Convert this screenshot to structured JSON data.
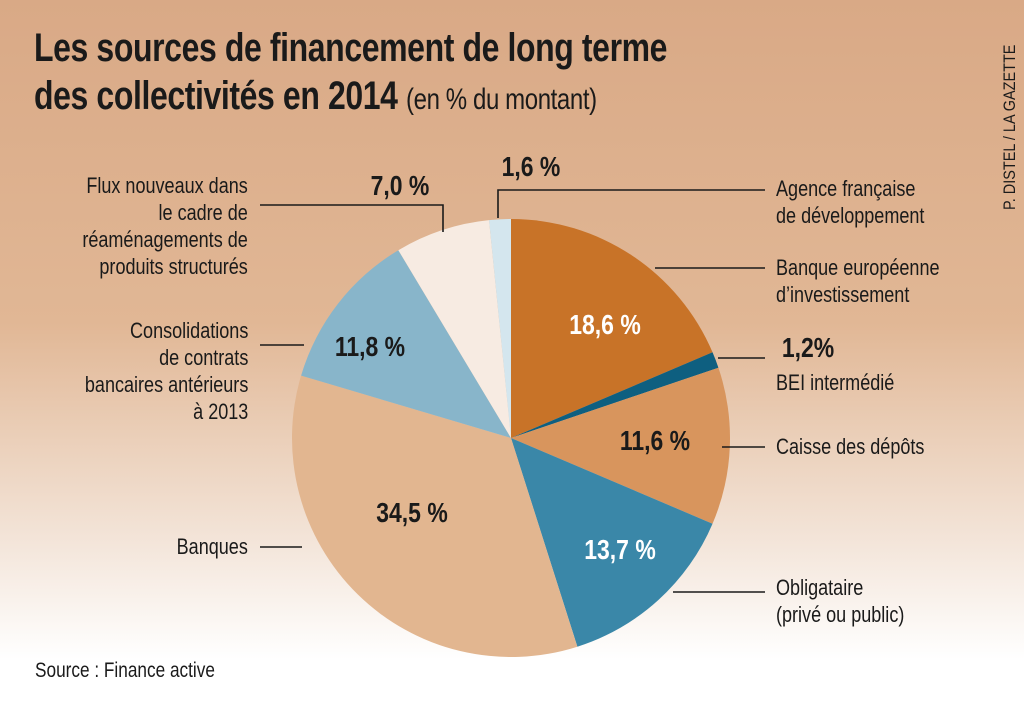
{
  "title": {
    "line1": "Les sources de financement de long terme",
    "line2": "des collectivités en 2014",
    "unit": "(en % du montant)"
  },
  "credit": "P. DISTEL / LA GAZETTE",
  "source": "Source : Finance active",
  "chart_data": {
    "type": "pie",
    "start": "12 o'clock, clockwise",
    "categories": [
      "Banque européenne d’investissement",
      "BEI intermédié",
      "Caisse des dépôts",
      "Obligataire (privé ou public)",
      "Banques",
      "Consolidations de contrats bancaires antérieurs à 2013",
      "Flux nouveaux dans le cadre de réaménagements de produits structurés",
      "Agence française de développement"
    ],
    "values": [
      18.6,
      1.2,
      11.6,
      13.7,
      34.5,
      11.8,
      7.0,
      1.6
    ],
    "value_labels": [
      "18,6 %",
      "1,2%",
      "11,6 %",
      "13,7 %",
      "34,5 %",
      "11,8 %",
      "7,0 %",
      "1,6 %"
    ],
    "colors": [
      "#c87328",
      "#0e5f80",
      "#d8955d",
      "#3a87a8",
      "#e2b690",
      "#88b5ca",
      "#f7ebe2",
      "#d4e6ee"
    ],
    "label_colors": [
      "#ffffff",
      "#1a1a1a",
      "#1a1a1a",
      "#ffffff",
      "#1a1a1a",
      "#1a1a1a",
      "#1a1a1a",
      "#1a1a1a"
    ]
  },
  "labels": {
    "agence": [
      "Agence française",
      "de développement"
    ],
    "bei": [
      "Banque européenne",
      "d’investissement"
    ],
    "bei_inter": "BEI intermédié",
    "caisse": "Caisse des dépôts",
    "oblig": [
      "Obligataire",
      "(privé ou public)"
    ],
    "banques": "Banques",
    "consol": [
      "Consolidations",
      "de contrats",
      "bancaires antérieurs",
      "à 2013"
    ],
    "flux": [
      "Flux nouveaux dans",
      "le cadre de",
      "réaménagements de",
      "produits structurés"
    ]
  }
}
